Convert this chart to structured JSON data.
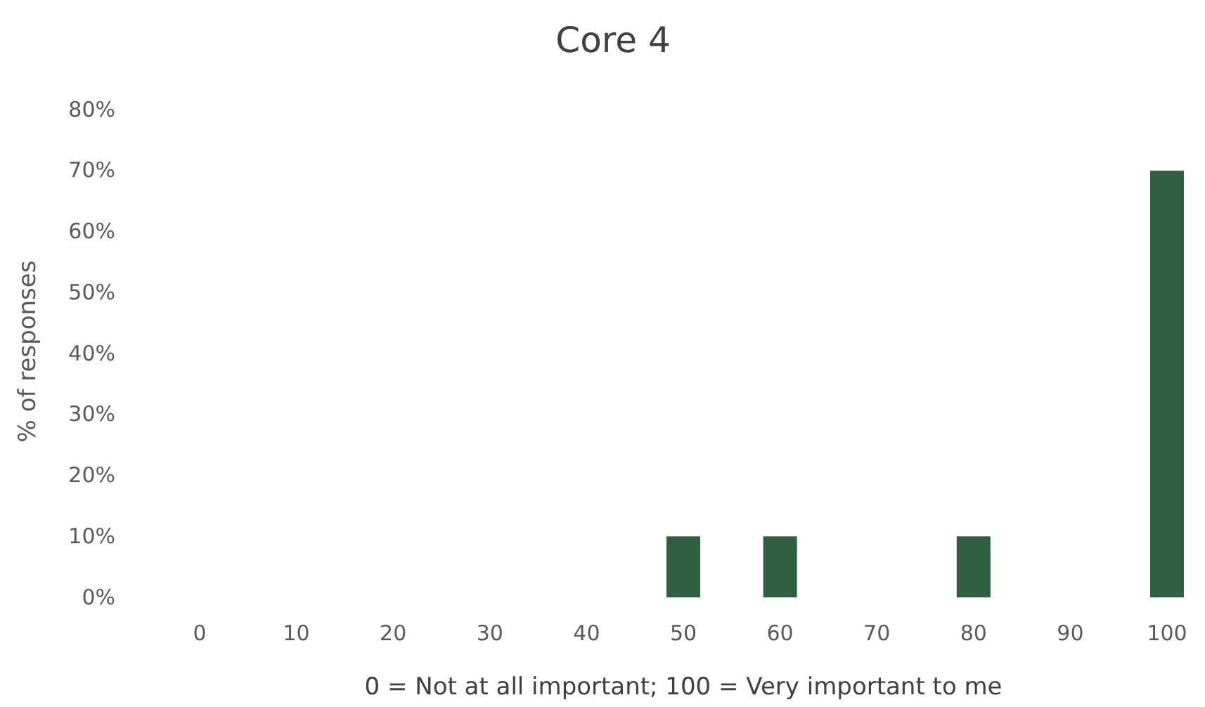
{
  "chart_data": {
    "type": "bar",
    "title": "Core 4",
    "xlabel": "0 = Not at all important; 100 = Very important to me",
    "ylabel": "% of responses",
    "categories": [
      "0",
      "10",
      "20",
      "30",
      "40",
      "50",
      "60",
      "70",
      "80",
      "90",
      "100"
    ],
    "values": [
      0,
      0,
      0,
      0,
      0,
      10,
      10,
      0,
      10,
      0,
      70
    ],
    "color": "#2f5f40",
    "ylim": [
      0,
      80
    ],
    "yticks": [
      {
        "value": 0,
        "label": "0%"
      },
      {
        "value": 10,
        "label": "10%"
      },
      {
        "value": 20,
        "label": "20%"
      },
      {
        "value": 30,
        "label": "30%"
      },
      {
        "value": 40,
        "label": "40%"
      },
      {
        "value": 50,
        "label": "50%"
      },
      {
        "value": 60,
        "label": "60%"
      },
      {
        "value": 70,
        "label": "70%"
      },
      {
        "value": 80,
        "label": "80%"
      }
    ],
    "grid": false
  }
}
